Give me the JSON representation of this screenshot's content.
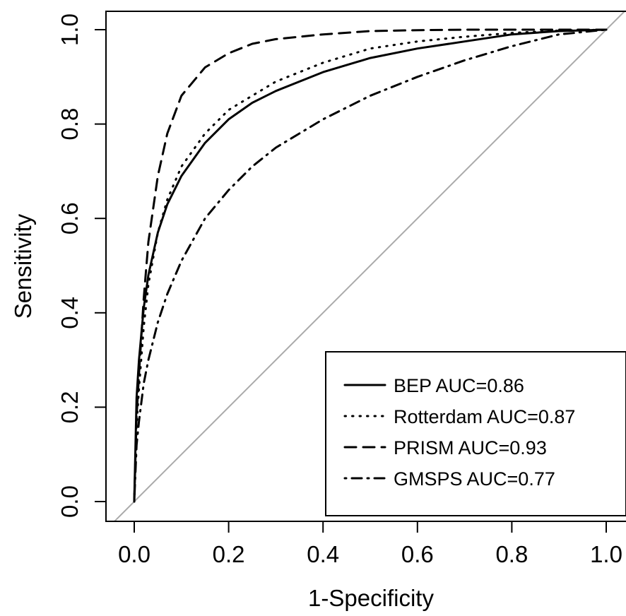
{
  "chart_data": {
    "type": "line",
    "xlabel": "1-Specificity",
    "ylabel": "Sensitivity",
    "xlim": [
      0,
      1
    ],
    "ylim": [
      0,
      1
    ],
    "x_ticks": [
      "0.0",
      "0.2",
      "0.4",
      "0.6",
      "0.8",
      "1.0"
    ],
    "y_ticks": [
      "0.0",
      "0.2",
      "0.4",
      "0.6",
      "0.8",
      "1.0"
    ],
    "grid": false,
    "legend_position": "bottom-right",
    "reference_line": {
      "x": [
        0,
        1
      ],
      "y": [
        0,
        1
      ],
      "color": "#aaaaaa"
    },
    "series": [
      {
        "name": "BEP AUC=0.86",
        "line_style": "solid",
        "color": "#000000",
        "x": [
          0,
          0.005,
          0.01,
          0.02,
          0.03,
          0.05,
          0.07,
          0.1,
          0.15,
          0.2,
          0.25,
          0.3,
          0.4,
          0.5,
          0.6,
          0.7,
          0.8,
          0.9,
          1.0
        ],
        "y": [
          0,
          0.22,
          0.3,
          0.41,
          0.48,
          0.57,
          0.63,
          0.69,
          0.76,
          0.81,
          0.845,
          0.87,
          0.91,
          0.94,
          0.96,
          0.975,
          0.99,
          0.997,
          1.0
        ]
      },
      {
        "name": "Rotterdam AUC=0.87",
        "line_style": "dotted",
        "color": "#000000",
        "x": [
          0,
          0.005,
          0.01,
          0.02,
          0.03,
          0.05,
          0.07,
          0.1,
          0.15,
          0.2,
          0.25,
          0.3,
          0.4,
          0.5,
          0.6,
          0.7,
          0.8,
          0.9,
          1.0
        ],
        "y": [
          0,
          0.16,
          0.24,
          0.37,
          0.46,
          0.57,
          0.64,
          0.71,
          0.78,
          0.83,
          0.86,
          0.89,
          0.93,
          0.96,
          0.975,
          0.985,
          0.993,
          0.998,
          1.0
        ]
      },
      {
        "name": "PRISM AUC=0.93",
        "line_style": "dashed",
        "color": "#000000",
        "x": [
          0,
          0.005,
          0.01,
          0.02,
          0.03,
          0.05,
          0.07,
          0.1,
          0.15,
          0.2,
          0.25,
          0.3,
          0.4,
          0.5,
          0.6,
          0.7,
          0.8,
          0.9,
          1.0
        ],
        "y": [
          0,
          0.18,
          0.27,
          0.43,
          0.55,
          0.69,
          0.78,
          0.86,
          0.92,
          0.95,
          0.97,
          0.98,
          0.99,
          0.997,
          0.999,
          1.0,
          1.0,
          1.0,
          1.0
        ]
      },
      {
        "name": "GMSPS AUC=0.77",
        "line_style": "dotdash",
        "color": "#000000",
        "x": [
          0,
          0.005,
          0.01,
          0.02,
          0.03,
          0.05,
          0.07,
          0.1,
          0.15,
          0.2,
          0.25,
          0.3,
          0.4,
          0.5,
          0.6,
          0.7,
          0.8,
          0.9,
          1.0
        ],
        "y": [
          0,
          0.12,
          0.17,
          0.25,
          0.3,
          0.38,
          0.44,
          0.51,
          0.6,
          0.66,
          0.71,
          0.75,
          0.81,
          0.86,
          0.9,
          0.935,
          0.965,
          0.99,
          1.0
        ]
      }
    ]
  }
}
